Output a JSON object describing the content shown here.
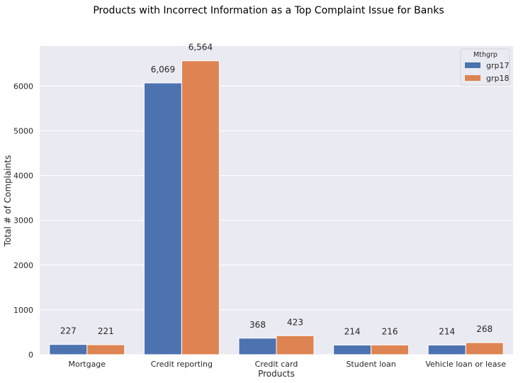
{
  "chart_data": {
    "type": "bar",
    "title": "Products with Incorrect Information as a Top Complaint Issue for Banks",
    "xlabel": "Products",
    "ylabel": "Total # of Complaints",
    "categories": [
      "Mortgage",
      "Credit reporting",
      "Credit card",
      "Student loan",
      "Vehicle loan or lease"
    ],
    "series": [
      {
        "name": "grp17",
        "values": [
          227,
          6069,
          368,
          214,
          214
        ],
        "labels": [
          "227",
          "6,069",
          "368",
          "214",
          "214"
        ],
        "color": "#4c72b0"
      },
      {
        "name": "grp18",
        "values": [
          221,
          6564,
          423,
          216,
          268
        ],
        "labels": [
          "221",
          "6,564",
          "423",
          "216",
          "268"
        ],
        "color": "#dd8452"
      }
    ],
    "ylim": [
      0,
      6892
    ],
    "yticks": [
      0,
      1000,
      2000,
      3000,
      4000,
      5000,
      6000
    ],
    "ytick_labels": [
      "0",
      "1000",
      "2000",
      "3000",
      "4000",
      "5000",
      "6000"
    ],
    "grid": true,
    "background": "#eaeaf2",
    "legend": {
      "title": "Mthgrp",
      "placement": "top-right"
    }
  }
}
